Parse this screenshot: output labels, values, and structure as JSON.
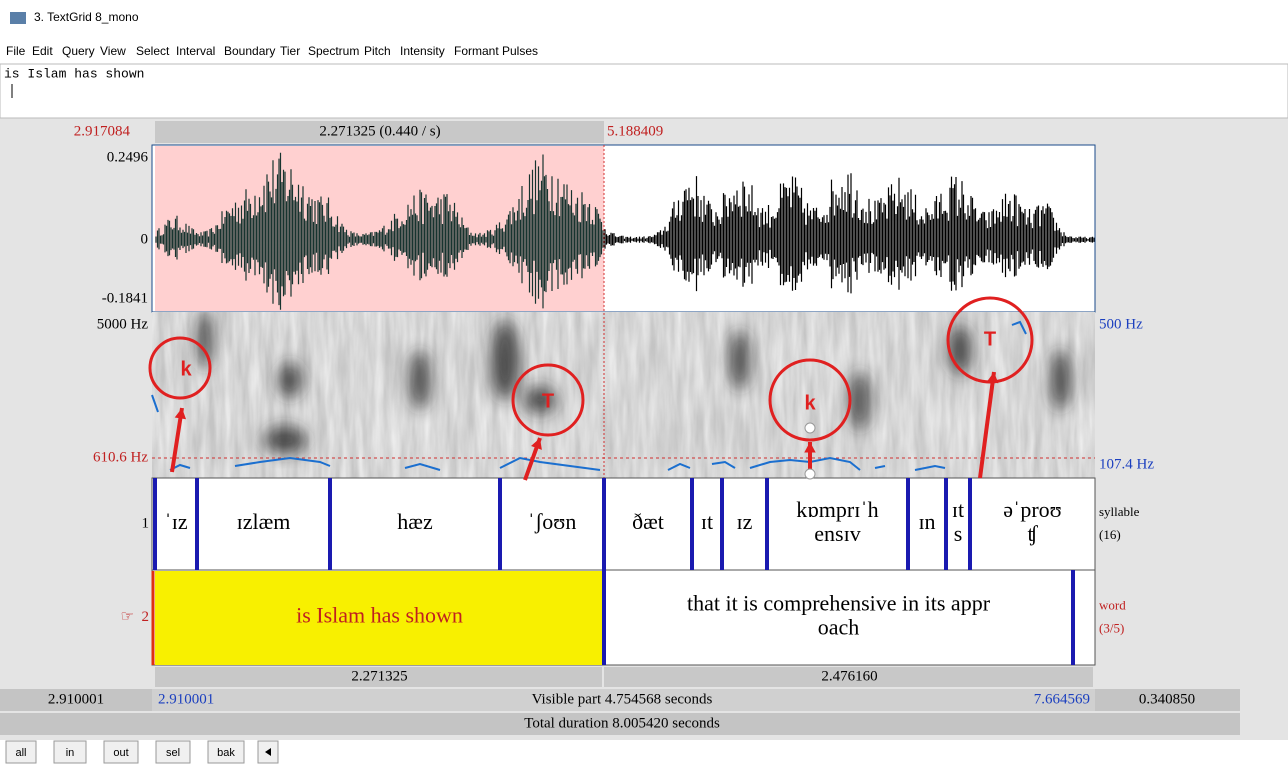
{
  "window": {
    "title": "3. TextGrid 8_mono"
  },
  "menu": [
    "File",
    "Edit",
    "Query",
    "View",
    "Select",
    "Interval",
    "Boundary",
    "Tier",
    "Spectrum",
    "Pitch",
    "Intensity",
    "Formant",
    "Pulses"
  ],
  "text_editor": "is Islam has shown",
  "time_bar": {
    "left": "2.917084",
    "selection": "2.271325 (0.440 / s)",
    "cursor": "5.188409"
  },
  "waveform": {
    "max": "0.2496",
    "zero": "0",
    "min": "-0.1841"
  },
  "spectrogram": {
    "fmax": "5000 Hz",
    "fmin": "610.6 Hz",
    "pitch_max": "500 Hz",
    "pitch_min": "107.4 Hz"
  },
  "tiers": [
    {
      "number": "1",
      "name": "syllable",
      "count": "(16)",
      "intervals": [
        [
          "ˈɪz"
        ],
        [
          "ɪzlæm"
        ],
        [
          "hæz"
        ],
        [
          "ˈʃoʊn"
        ],
        [
          "ðæt"
        ],
        [
          "ɪt"
        ],
        [
          "ɪz"
        ],
        [
          "kɒmprɪˈh",
          "ensɪv"
        ],
        [
          "ɪn"
        ],
        [
          "ɪt",
          "s"
        ],
        [
          "əˈproʊ",
          "ʧ"
        ]
      ]
    },
    {
      "pointer": "☞",
      "number": "2",
      "name": "word",
      "count": "(3/5)",
      "intervals": [
        [
          "is Islam has shown"
        ],
        [
          "that it is comprehensive in its appr",
          "oach"
        ]
      ]
    }
  ],
  "annotations": [
    "k",
    "T",
    "k",
    "T"
  ],
  "durations": [
    "2.271325",
    "2.476160"
  ],
  "visible": {
    "left": "2.910001",
    "start": "2.910001",
    "label": "Visible part 4.754568 seconds",
    "end": "7.664569",
    "right": "0.340850"
  },
  "total": "Total duration 8.005420 seconds",
  "buttons": [
    "all",
    "in",
    "out",
    "sel",
    "bak"
  ]
}
